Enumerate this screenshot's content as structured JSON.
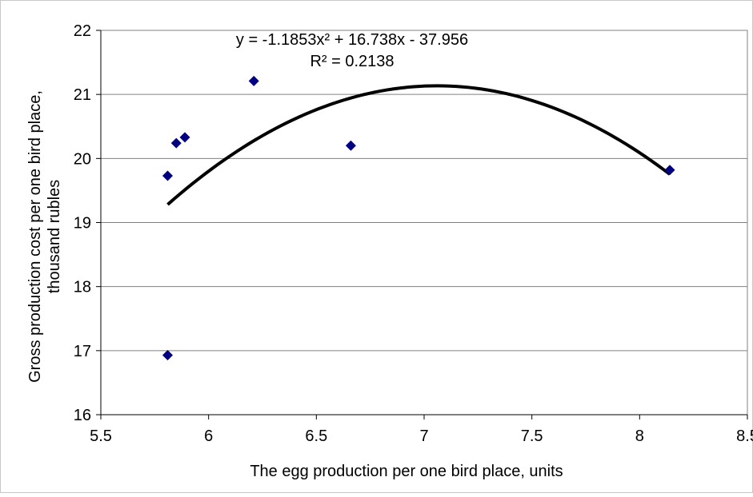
{
  "chart_data": {
    "type": "scatter",
    "title": "",
    "xlabel": "The egg production per one bird place, units",
    "ylabel_lines": [
      "Gross production cost per one bird place,",
      "thousand rubles"
    ],
    "xlim": [
      5.5,
      8.5
    ],
    "ylim": [
      16,
      22
    ],
    "x_ticks": [
      "5.5",
      "6",
      "6.5",
      "7",
      "7.5",
      "8",
      "8.5"
    ],
    "y_ticks": [
      "16",
      "17",
      "18",
      "19",
      "20",
      "21",
      "22"
    ],
    "grid": "horizontal",
    "legend": "none",
    "marker_color": "#000080",
    "points": [
      {
        "x": 5.81,
        "y": 16.93
      },
      {
        "x": 5.81,
        "y": 19.73
      },
      {
        "x": 5.85,
        "y": 20.24
      },
      {
        "x": 5.89,
        "y": 20.33
      },
      {
        "x": 6.21,
        "y": 21.21
      },
      {
        "x": 6.66,
        "y": 20.2
      },
      {
        "x": 8.14,
        "y": 19.82
      }
    ],
    "trendline": {
      "type": "polynomial",
      "degree": 2,
      "coefficients": [
        -1.1853,
        16.738,
        -37.956
      ],
      "x_range": [
        5.81,
        8.14
      ],
      "equation_label": "y = -1.1853x² + 16.738x - 37.956",
      "r2_label": "R² = 0.2138",
      "color": "#000000"
    }
  }
}
